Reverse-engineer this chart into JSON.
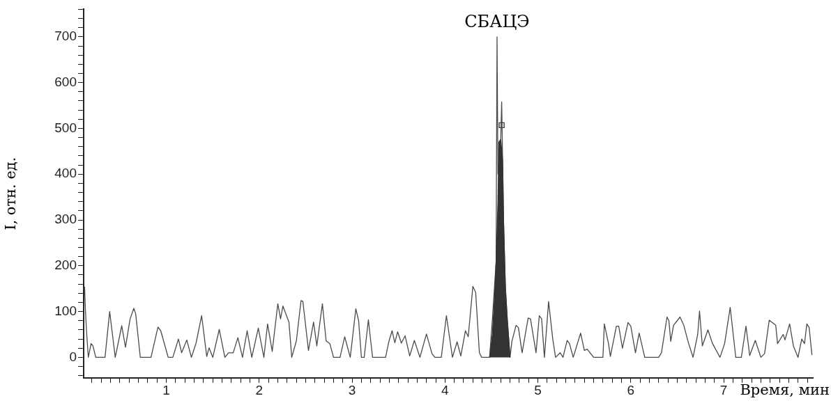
{
  "chart_data": {
    "type": "line",
    "xlabel": "Время, мин",
    "ylabel": "I, отн. ед.",
    "grid": false,
    "legend": false,
    "annotations": [
      {
        "text": "СБАЦЭ",
        "x": 4.56,
        "y": 700
      }
    ],
    "xlim": [
      0.11,
      7.96
    ],
    "ylim": [
      -45,
      760
    ],
    "xticks": [
      {
        "value": 0.2,
        "label": null
      },
      {
        "value": 0.3,
        "label": null
      },
      {
        "value": 0.4,
        "label": null
      },
      {
        "value": 0.5,
        "label": null
      },
      {
        "value": 0.6,
        "label": null
      },
      {
        "value": 0.7,
        "label": null
      },
      {
        "value": 0.8,
        "label": null
      },
      {
        "value": 0.9,
        "label": null
      },
      1,
      {
        "value": 1.1,
        "label": null
      },
      {
        "value": 1.2,
        "label": null
      },
      {
        "value": 1.3,
        "label": null
      },
      {
        "value": 1.4,
        "label": null
      },
      {
        "value": 1.5,
        "label": null
      },
      {
        "value": 1.6,
        "label": null
      },
      {
        "value": 1.7,
        "label": null
      },
      {
        "value": 1.8,
        "label": null
      },
      {
        "value": 1.9,
        "label": null
      },
      2,
      {
        "value": 2.1,
        "label": null
      },
      {
        "value": 2.2,
        "label": null
      },
      {
        "value": 2.3,
        "label": null
      },
      {
        "value": 2.4,
        "label": null
      },
      {
        "value": 2.5,
        "label": null
      },
      {
        "value": 2.6,
        "label": null
      },
      {
        "value": 2.7,
        "label": null
      },
      {
        "value": 2.8,
        "label": null
      },
      {
        "value": 2.9,
        "label": null
      },
      3,
      {
        "value": 3.1,
        "label": null
      },
      {
        "value": 3.2,
        "label": null
      },
      {
        "value": 3.3,
        "label": null
      },
      {
        "value": 3.4,
        "label": null
      },
      {
        "value": 3.5,
        "label": null
      },
      {
        "value": 3.6,
        "label": null
      },
      {
        "value": 3.7,
        "label": null
      },
      {
        "value": 3.8,
        "label": null
      },
      {
        "value": 3.9,
        "label": null
      },
      4,
      {
        "value": 4.1,
        "label": null
      },
      {
        "value": 4.2,
        "label": null
      },
      {
        "value": 4.3,
        "label": null
      },
      {
        "value": 4.4,
        "label": null
      },
      {
        "value": 4.5,
        "label": null
      },
      {
        "value": 4.6,
        "label": null
      },
      {
        "value": 4.7,
        "label": null
      },
      {
        "value": 4.8,
        "label": null
      },
      {
        "value": 4.9,
        "label": null
      },
      5,
      {
        "value": 5.1,
        "label": null
      },
      {
        "value": 5.2,
        "label": null
      },
      {
        "value": 5.3,
        "label": null
      },
      {
        "value": 5.4,
        "label": null
      },
      {
        "value": 5.5,
        "label": null
      },
      {
        "value": 5.6,
        "label": null
      },
      {
        "value": 5.7,
        "label": null
      },
      {
        "value": 5.8,
        "label": null
      },
      {
        "value": 5.9,
        "label": null
      },
      6,
      {
        "value": 6.1,
        "label": null
      },
      {
        "value": 6.2,
        "label": null
      },
      {
        "value": 6.3,
        "label": null
      },
      {
        "value": 6.4,
        "label": null
      },
      {
        "value": 6.5,
        "label": null
      },
      {
        "value": 6.6,
        "label": null
      },
      {
        "value": 6.7,
        "label": null
      },
      {
        "value": 6.8,
        "label": null
      },
      {
        "value": 6.9,
        "label": null
      },
      7,
      {
        "value": 7.1,
        "label": null
      },
      {
        "value": 7.2,
        "label": null
      },
      {
        "value": 7.3,
        "label": null
      },
      {
        "value": 7.4,
        "label": null
      },
      {
        "value": 7.5,
        "label": null
      },
      {
        "value": 7.6,
        "label": null
      },
      {
        "value": 7.7,
        "label": null
      },
      {
        "value": 7.8,
        "label": null
      },
      {
        "value": 7.9,
        "label": null
      }
    ],
    "yticks": [
      {
        "value": -40,
        "label": null
      },
      {
        "value": -20,
        "label": null
      },
      0,
      {
        "value": 20,
        "label": null
      },
      {
        "value": 40,
        "label": null
      },
      {
        "value": 60,
        "label": null
      },
      {
        "value": 80,
        "label": null
      },
      100,
      {
        "value": 120,
        "label": null
      },
      {
        "value": 140,
        "label": null
      },
      {
        "value": 160,
        "label": null
      },
      {
        "value": 180,
        "label": null
      },
      200,
      {
        "value": 220,
        "label": null
      },
      {
        "value": 240,
        "label": null
      },
      {
        "value": 260,
        "label": null
      },
      {
        "value": 280,
        "label": null
      },
      300,
      {
        "value": 320,
        "label": null
      },
      {
        "value": 340,
        "label": null
      },
      {
        "value": 360,
        "label": null
      },
      {
        "value": 380,
        "label": null
      },
      400,
      {
        "value": 420,
        "label": null
      },
      {
        "value": 440,
        "label": null
      },
      {
        "value": 460,
        "label": null
      },
      {
        "value": 480,
        "label": null
      },
      500,
      {
        "value": 520,
        "label": null
      },
      {
        "value": 540,
        "label": null
      },
      {
        "value": 560,
        "label": null
      },
      {
        "value": 580,
        "label": null
      },
      600,
      {
        "value": 620,
        "label": null
      },
      {
        "value": 640,
        "label": null
      },
      {
        "value": 660,
        "label": null
      },
      {
        "value": 680,
        "label": null
      },
      700,
      {
        "value": 720,
        "label": null
      },
      {
        "value": 740,
        "label": null
      },
      {
        "value": 760,
        "label": null
      }
    ],
    "series": [
      {
        "type": "area",
        "color": "#333333",
        "x": [
          4.48,
          4.51,
          4.53,
          4.55,
          4.57,
          4.58,
          4.6,
          4.62,
          4.63,
          4.65,
          4.67,
          4.7
        ],
        "values": [
          0,
          50,
          120,
          208,
          340,
          470,
          476,
          430,
          298,
          152,
          84,
          0
        ]
      },
      {
        "type": "line",
        "color": "#4a4a4a",
        "x": [
          0.12,
          0.13,
          0.14,
          0.15,
          0.16,
          0.19,
          0.21,
          0.24,
          0.26,
          0.34,
          0.39,
          0.45,
          0.52,
          0.56,
          0.61,
          0.65,
          0.67,
          0.72,
          0.835,
          0.91,
          0.94,
          1.02,
          1.07,
          1.13,
          1.165,
          1.22,
          1.27,
          1.32,
          1.38,
          1.435,
          1.46,
          1.5,
          1.57,
          1.63,
          1.67,
          1.72,
          1.77,
          1.82,
          1.87,
          1.92,
          1.99,
          2.05,
          2.09,
          2.14,
          2.2,
          2.23,
          2.255,
          2.32,
          2.35,
          2.4,
          2.45,
          2.47,
          2.53,
          2.585,
          2.62,
          2.68,
          2.72,
          2.76,
          2.8,
          2.87,
          2.92,
          2.98,
          3.04,
          3.07,
          3.1,
          3.13,
          3.175,
          3.22,
          3.36,
          3.395,
          3.43,
          3.46,
          3.49,
          3.53,
          3.57,
          3.62,
          3.67,
          3.73,
          3.8,
          3.86,
          3.89,
          3.96,
          4.015,
          4.08,
          4.13,
          4.17,
          4.22,
          4.25,
          4.3,
          4.33,
          4.37,
          4.395,
          4.48,
          4.51,
          4.55,
          4.56,
          4.57,
          4.6,
          4.61,
          4.62,
          4.63,
          4.65,
          4.67,
          4.7,
          4.72,
          4.765,
          4.79,
          4.83,
          4.895,
          4.92,
          4.98,
          5.015,
          5.04,
          5.07,
          5.115,
          5.16,
          5.19,
          5.24,
          5.27,
          5.315,
          5.34,
          5.38,
          5.46,
          5.5,
          5.53,
          5.6,
          5.7,
          5.715,
          5.76,
          5.78,
          5.845,
          5.87,
          5.91,
          5.97,
          6.0,
          6.05,
          6.09,
          6.15,
          6.3,
          6.33,
          6.39,
          6.41,
          6.43,
          6.46,
          6.53,
          6.57,
          6.62,
          6.67,
          6.72,
          6.74,
          6.77,
          6.83,
          6.88,
          6.96,
          7.01,
          7.07,
          7.13,
          7.19,
          7.24,
          7.28,
          7.34,
          7.4,
          7.44,
          7.49,
          7.56,
          7.58,
          7.64,
          7.66,
          7.71,
          7.75,
          7.8,
          7.84,
          7.87,
          7.895,
          7.92,
          7.95
        ],
        "values": [
          154,
          100,
          60,
          30,
          0,
          30,
          25,
          0,
          0,
          0,
          100,
          0,
          69,
          22,
          84,
          107,
          95,
          0,
          0,
          66,
          58,
          0,
          0,
          40,
          10,
          38,
          0,
          31,
          91,
          2,
          21,
          0,
          61,
          0,
          10,
          10,
          43,
          0,
          58,
          0,
          64,
          0,
          73,
          13,
          117,
          84,
          112,
          77,
          0,
          36,
          124,
          122,
          15,
          77,
          25,
          117,
          36,
          30,
          0,
          0,
          45,
          0,
          106,
          80,
          0,
          0,
          82,
          0,
          0,
          34,
          58,
          32,
          56,
          31,
          47,
          3,
          37,
          0,
          51,
          8,
          0,
          0,
          91,
          0,
          34,
          3,
          58,
          45,
          155,
          142,
          10,
          0,
          0,
          84,
          208,
          700,
          400,
          476,
          558,
          430,
          298,
          152,
          84,
          0,
          35,
          70,
          65,
          10,
          86,
          84,
          10,
          91,
          84,
          0,
          122,
          40,
          0,
          10,
          0,
          37,
          30,
          0,
          53,
          15,
          18,
          0,
          0,
          73,
          30,
          2,
          68,
          68,
          20,
          76,
          68,
          10,
          53,
          0,
          0,
          10,
          88,
          80,
          35,
          70,
          88,
          70,
          32,
          0,
          50,
          101,
          25,
          60,
          30,
          0,
          30,
          109,
          0,
          0,
          68,
          4,
          37,
          0,
          8,
          81,
          70,
          30,
          50,
          38,
          73,
          25,
          0,
          40,
          30,
          73,
          65,
          5
        ]
      },
      {
        "type": "scatter",
        "color": "#333333",
        "marker": "square",
        "x": [
          4.61
        ],
        "values": [
          507
        ]
      }
    ]
  }
}
